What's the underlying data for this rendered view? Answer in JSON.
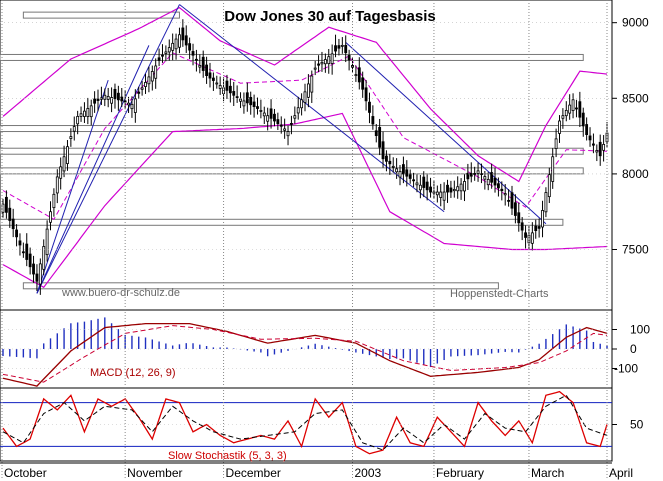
{
  "chart_data": [
    {
      "type": "candlestick",
      "title": "Dow Jones 30 auf Tagesbasis",
      "watermark_left": "www.buero-dr-schulz.de",
      "watermark_right": "Hoppenstedt-Charts",
      "ylim": [
        7100,
        9150
      ],
      "yticks": [
        "9000",
        "8500",
        "8000",
        "7500"
      ],
      "ytick_values": [
        9000,
        8500,
        8000,
        7500
      ],
      "x_months": [
        "October",
        "November",
        "December",
        "2003",
        "February",
        "March",
        "April"
      ],
      "close_path": [
        [
          0,
          7800
        ],
        [
          5,
          7530
        ],
        [
          10,
          7290
        ],
        [
          16,
          7980
        ],
        [
          22,
          8380
        ],
        [
          30,
          8520
        ],
        [
          38,
          8460
        ],
        [
          46,
          8750
        ],
        [
          52,
          8920
        ],
        [
          60,
          8650
        ],
        [
          68,
          8520
        ],
        [
          76,
          8420
        ],
        [
          84,
          8280
        ],
        [
          92,
          8700
        ],
        [
          100,
          8850
        ],
        [
          106,
          8560
        ],
        [
          112,
          8100
        ],
        [
          118,
          8000
        ],
        [
          126,
          7880
        ],
        [
          132,
          7880
        ],
        [
          140,
          8020
        ],
        [
          148,
          7870
        ],
        [
          154,
          7580
        ],
        [
          158,
          7640
        ],
        [
          164,
          8350
        ],
        [
          168,
          8490
        ],
        [
          172,
          8260
        ],
        [
          176,
          8120
        ],
        [
          178,
          8270
        ]
      ],
      "candle_count": 179,
      "bollinger_upper": [
        [
          0,
          8380
        ],
        [
          20,
          8760
        ],
        [
          40,
          8960
        ],
        [
          52,
          9100
        ],
        [
          64,
          8880
        ],
        [
          80,
          8720
        ],
        [
          96,
          8970
        ],
        [
          110,
          8870
        ],
        [
          126,
          8430
        ],
        [
          140,
          8120
        ],
        [
          152,
          7950
        ],
        [
          160,
          8320
        ],
        [
          170,
          8680
        ],
        [
          178,
          8660
        ]
      ],
      "bollinger_mid": [
        [
          0,
          7890
        ],
        [
          15,
          7700
        ],
        [
          30,
          8300
        ],
        [
          50,
          8800
        ],
        [
          70,
          8600
        ],
        [
          88,
          8620
        ],
        [
          102,
          8780
        ],
        [
          118,
          8240
        ],
        [
          140,
          7980
        ],
        [
          154,
          7780
        ],
        [
          166,
          8160
        ],
        [
          178,
          8150
        ]
      ],
      "bollinger_lower": [
        [
          0,
          7400
        ],
        [
          12,
          7250
        ],
        [
          30,
          7790
        ],
        [
          50,
          8280
        ],
        [
          70,
          8300
        ],
        [
          86,
          8330
        ],
        [
          100,
          8400
        ],
        [
          114,
          7750
        ],
        [
          130,
          7540
        ],
        [
          150,
          7500
        ],
        [
          160,
          7500
        ],
        [
          178,
          7520
        ]
      ],
      "horizontal_levels": [
        9050,
        8770,
        8300,
        8150,
        8020,
        7680,
        7260
      ],
      "trendlines": [
        {
          "from": [
            10,
            7210
          ],
          "to": [
            52,
            9120
          ]
        },
        {
          "from": [
            10,
            7210
          ],
          "to": [
            43,
            8850
          ]
        },
        {
          "from": [
            10,
            7210
          ],
          "to": [
            31,
            8620
          ]
        },
        {
          "from": [
            52,
            9120
          ],
          "to": [
            130,
            7750
          ]
        },
        {
          "from": [
            101,
            8870
          ],
          "to": [
            160,
            7670
          ]
        }
      ]
    },
    {
      "type": "macd",
      "label": "MACD (12, 26, 9)",
      "ylim": [
        -200,
        200
      ],
      "yticks": [
        "100",
        "0",
        "-100"
      ],
      "ytick_values": [
        100,
        0,
        -100
      ],
      "macd": [
        [
          0,
          -150
        ],
        [
          10,
          -190
        ],
        [
          20,
          -10
        ],
        [
          30,
          110
        ],
        [
          42,
          130
        ],
        [
          55,
          130
        ],
        [
          66,
          90
        ],
        [
          78,
          30
        ],
        [
          92,
          70
        ],
        [
          104,
          30
        ],
        [
          114,
          -60
        ],
        [
          126,
          -140
        ],
        [
          140,
          -120
        ],
        [
          152,
          -95
        ],
        [
          158,
          -55
        ],
        [
          166,
          60
        ],
        [
          172,
          110
        ],
        [
          178,
          80
        ]
      ],
      "signal": [
        [
          0,
          -130
        ],
        [
          12,
          -170
        ],
        [
          24,
          -40
        ],
        [
          36,
          80
        ],
        [
          50,
          120
        ],
        [
          62,
          100
        ],
        [
          76,
          50
        ],
        [
          92,
          55
        ],
        [
          104,
          40
        ],
        [
          118,
          -60
        ],
        [
          132,
          -110
        ],
        [
          148,
          -95
        ],
        [
          158,
          -70
        ],
        [
          166,
          -10
        ],
        [
          174,
          80
        ],
        [
          178,
          70
        ]
      ]
    },
    {
      "type": "stochastic",
      "label": "Slow Stochastik (5, 3, 3)",
      "ylim": [
        0,
        100
      ],
      "yticks": [
        "50"
      ],
      "ytick_values": [
        50
      ],
      "levels": [
        80,
        20
      ],
      "k": [
        [
          0,
          45
        ],
        [
          4,
          20
        ],
        [
          8,
          30
        ],
        [
          12,
          85
        ],
        [
          16,
          70
        ],
        [
          20,
          90
        ],
        [
          24,
          40
        ],
        [
          28,
          85
        ],
        [
          32,
          75
        ],
        [
          36,
          85
        ],
        [
          40,
          60
        ],
        [
          44,
          30
        ],
        [
          48,
          85
        ],
        [
          52,
          80
        ],
        [
          56,
          40
        ],
        [
          60,
          50
        ],
        [
          64,
          35
        ],
        [
          68,
          25
        ],
        [
          72,
          30
        ],
        [
          76,
          35
        ],
        [
          80,
          30
        ],
        [
          84,
          55
        ],
        [
          88,
          20
        ],
        [
          92,
          85
        ],
        [
          96,
          60
        ],
        [
          100,
          80
        ],
        [
          104,
          20
        ],
        [
          108,
          10
        ],
        [
          112,
          15
        ],
        [
          116,
          60
        ],
        [
          120,
          25
        ],
        [
          124,
          20
        ],
        [
          128,
          60
        ],
        [
          132,
          40
        ],
        [
          136,
          20
        ],
        [
          140,
          80
        ],
        [
          144,
          55
        ],
        [
          148,
          35
        ],
        [
          152,
          55
        ],
        [
          156,
          25
        ],
        [
          160,
          90
        ],
        [
          164,
          95
        ],
        [
          168,
          80
        ],
        [
          172,
          25
        ],
        [
          176,
          20
        ],
        [
          178,
          50
        ]
      ],
      "d": [
        [
          0,
          40
        ],
        [
          6,
          25
        ],
        [
          12,
          65
        ],
        [
          18,
          80
        ],
        [
          24,
          55
        ],
        [
          30,
          75
        ],
        [
          38,
          70
        ],
        [
          44,
          40
        ],
        [
          50,
          75
        ],
        [
          56,
          55
        ],
        [
          62,
          40
        ],
        [
          70,
          30
        ],
        [
          78,
          35
        ],
        [
          86,
          40
        ],
        [
          92,
          65
        ],
        [
          100,
          70
        ],
        [
          106,
          25
        ],
        [
          112,
          15
        ],
        [
          118,
          45
        ],
        [
          124,
          25
        ],
        [
          130,
          50
        ],
        [
          136,
          30
        ],
        [
          142,
          65
        ],
        [
          148,
          45
        ],
        [
          154,
          40
        ],
        [
          160,
          75
        ],
        [
          166,
          90
        ],
        [
          172,
          45
        ],
        [
          178,
          35
        ]
      ]
    }
  ]
}
